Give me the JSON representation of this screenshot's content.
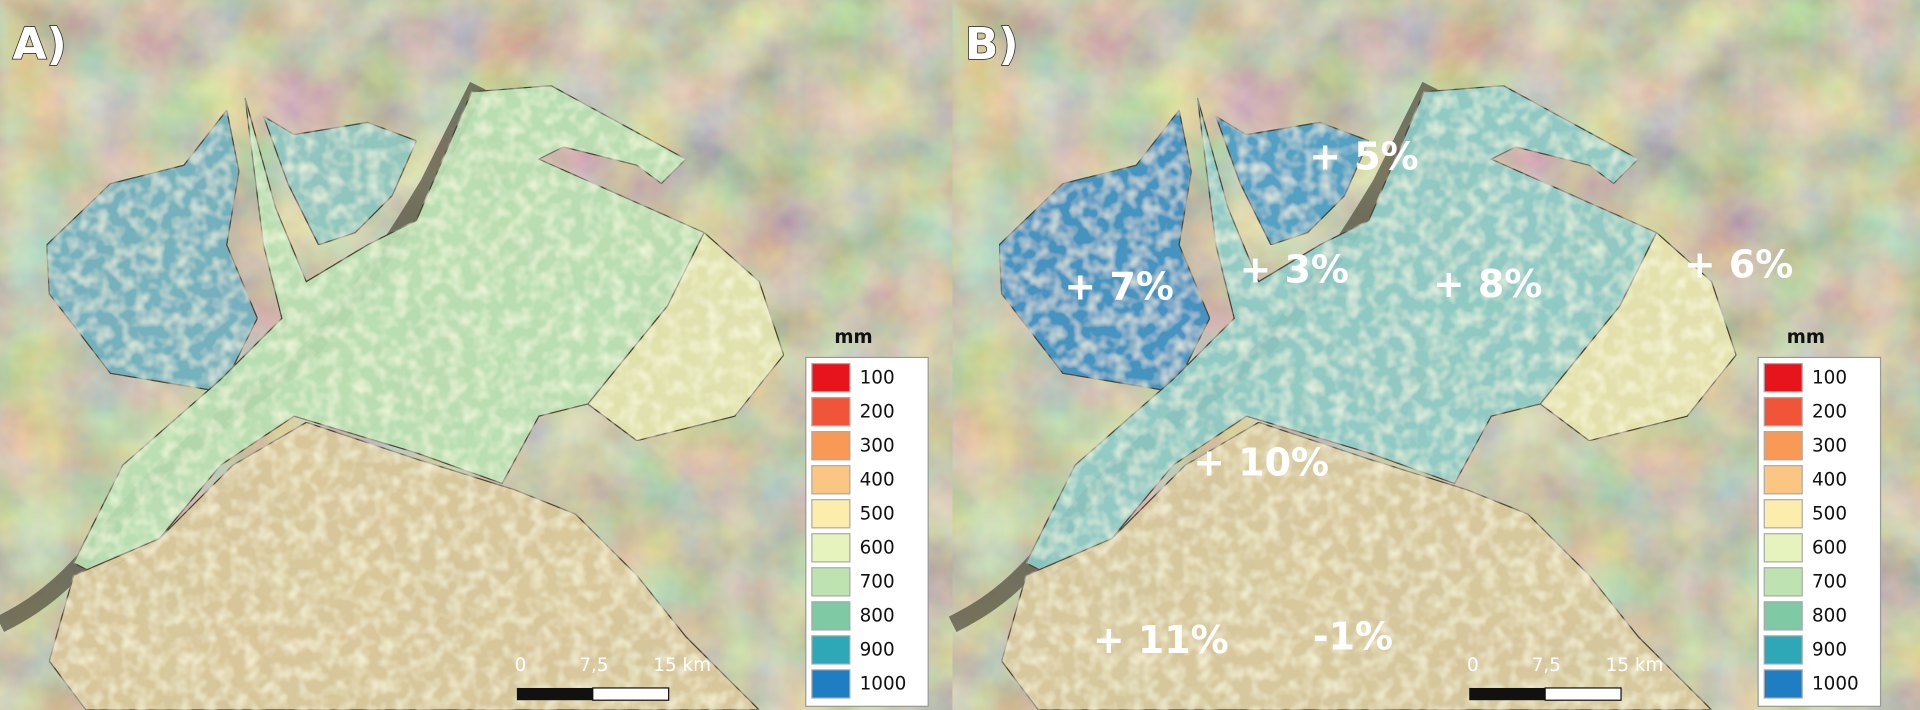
{
  "panels": [
    {
      "label": "A)",
      "annotations": []
    },
    {
      "label": "B)",
      "annotations": [
        "+ 5%",
        "+ 7%",
        "+ 3%",
        "+ 8%",
        "+ 6%",
        "+ 10%",
        "+ 11%",
        "-1%"
      ]
    }
  ],
  "legend": {
    "title": "mm",
    "items": [
      {
        "label": "100",
        "color": "#e8141c"
      },
      {
        "label": "200",
        "color": "#f0553a"
      },
      {
        "label": "300",
        "color": "#f89a55"
      },
      {
        "label": "400",
        "color": "#fbc681"
      },
      {
        "label": "500",
        "color": "#fdedac"
      },
      {
        "label": "600",
        "color": "#e6f3bd"
      },
      {
        "label": "700",
        "color": "#bfe3b0"
      },
      {
        "label": "800",
        "color": "#7fc9a4"
      },
      {
        "label": "900",
        "color": "#2ea7b7"
      },
      {
        "label": "1000",
        "color": "#1f7ec1"
      }
    ]
  },
  "scale_bar": {
    "labels": [
      "0",
      "7,5",
      "15 km"
    ]
  }
}
